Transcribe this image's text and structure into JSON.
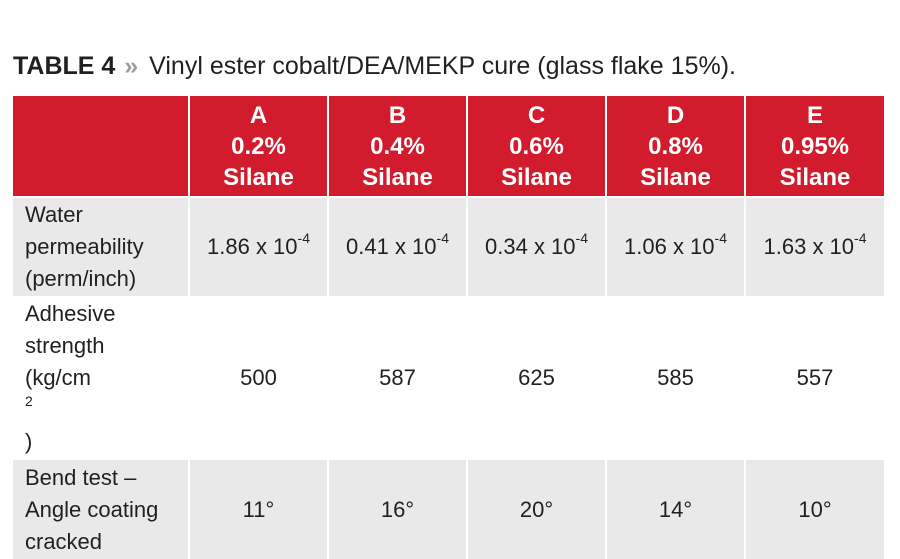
{
  "caption": {
    "label": "TABLE 4",
    "separator": "»",
    "text": "Vinyl ester cobalt/DEA/MEKP cure (glass flake 15%)."
  },
  "columns": [
    {
      "letter": "A",
      "amount": "0.2%",
      "unit": "Silane"
    },
    {
      "letter": "B",
      "amount": "0.4%",
      "unit": "Silane"
    },
    {
      "letter": "C",
      "amount": "0.6%",
      "unit": "Silane"
    },
    {
      "letter": "D",
      "amount": "0.8%",
      "unit": "Silane"
    },
    {
      "letter": "E",
      "amount": "0.95%",
      "unit": "Silane"
    }
  ],
  "rows": [
    {
      "label_lines": [
        "Water",
        "permeability",
        "(perm/inch)"
      ],
      "values": [
        {
          "base": "1.86 x 10",
          "exp": "-4"
        },
        {
          "base": "0.41 x 10",
          "exp": "-4"
        },
        {
          "base": "0.34 x 10",
          "exp": "-4"
        },
        {
          "base": "1.06 x 10",
          "exp": "-4"
        },
        {
          "base": "1.63 x 10",
          "exp": "-4"
        }
      ]
    },
    {
      "label_lines": [
        "Adhesive",
        "strength",
        "(kg/cm",
        "2",
        ")"
      ],
      "values": [
        {
          "base": "500"
        },
        {
          "base": "587"
        },
        {
          "base": "625"
        },
        {
          "base": "585"
        },
        {
          "base": "557"
        }
      ]
    },
    {
      "label_lines": [
        "Bend test –",
        "Angle coating",
        "cracked"
      ],
      "values": [
        {
          "base": "11°"
        },
        {
          "base": "16°"
        },
        {
          "base": "20°"
        },
        {
          "base": "14°"
        },
        {
          "base": "10°"
        }
      ]
    }
  ]
}
